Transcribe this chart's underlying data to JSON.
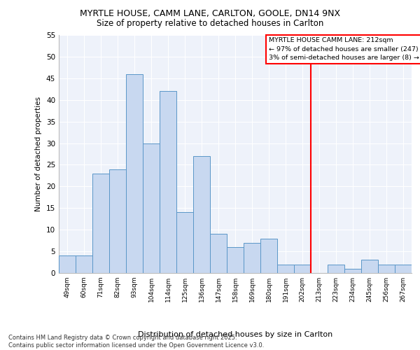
{
  "title_line1": "MYRTLE HOUSE, CAMM LANE, CARLTON, GOOLE, DN14 9NX",
  "title_line2": "Size of property relative to detached houses in Carlton",
  "xlabel": "Distribution of detached houses by size in Carlton",
  "ylabel": "Number of detached properties",
  "categories": [
    "49sqm",
    "60sqm",
    "71sqm",
    "82sqm",
    "93sqm",
    "104sqm",
    "114sqm",
    "125sqm",
    "136sqm",
    "147sqm",
    "158sqm",
    "169sqm",
    "180sqm",
    "191sqm",
    "202sqm",
    "213sqm",
    "223sqm",
    "234sqm",
    "245sqm",
    "256sqm",
    "267sqm"
  ],
  "values": [
    4,
    4,
    23,
    24,
    46,
    30,
    42,
    14,
    27,
    9,
    6,
    7,
    8,
    2,
    2,
    0,
    2,
    1,
    3,
    2,
    2
  ],
  "bar_color": "#c8d8f0",
  "bar_edge_color": "#5a96c8",
  "red_line_index": 15,
  "legend_title": "MYRTLE HOUSE CAMM LANE: 212sqm",
  "legend_line1": "← 97% of detached houses are smaller (247)",
  "legend_line2": "3% of semi-detached houses are larger (8) →",
  "ylim": [
    0,
    55
  ],
  "yticks": [
    0,
    5,
    10,
    15,
    20,
    25,
    30,
    35,
    40,
    45,
    50,
    55
  ],
  "background_color": "#eef2fa",
  "footer_line1": "Contains HM Land Registry data © Crown copyright and database right 2025.",
  "footer_line2": "Contains public sector information licensed under the Open Government Licence v3.0."
}
